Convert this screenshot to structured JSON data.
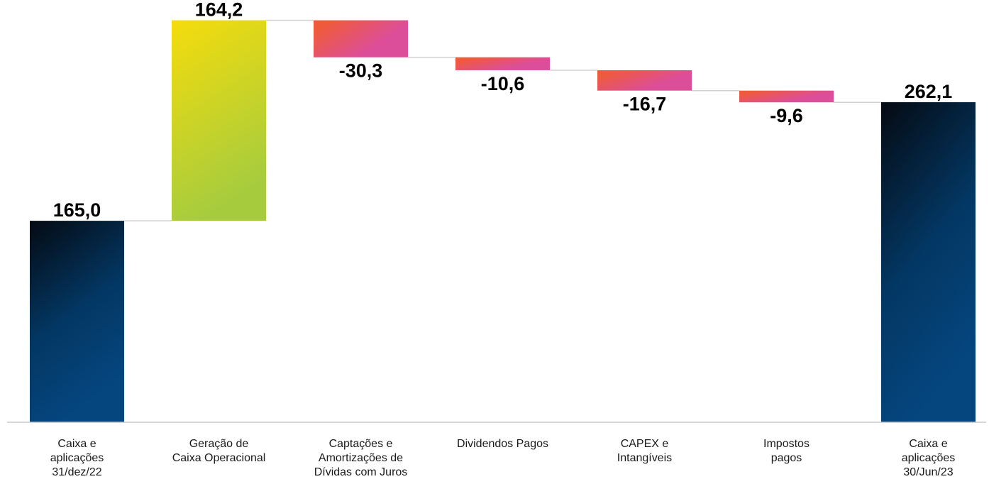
{
  "chart_data": {
    "type": "waterfall",
    "title": "",
    "xlabel": "",
    "ylabel": "",
    "ylim": [
      0,
      340
    ],
    "grid": false,
    "legend": "none",
    "categories": [
      [
        "Caixa e",
        "aplicações",
        "31/dez/22"
      ],
      [
        "Geração de",
        "Caixa Operacional"
      ],
      [
        "Captações e",
        "Amortizações de",
        "Dívidas com Juros"
      ],
      [
        "Dividendos Pagos"
      ],
      [
        "CAPEX e",
        "Intangíveis"
      ],
      [
        "Impostos",
        "pagos"
      ],
      [
        "Caixa e",
        "aplicações",
        "30/Jun/23"
      ]
    ],
    "values": [
      165.0,
      164.2,
      -30.3,
      -10.6,
      -16.7,
      -9.6,
      262.1
    ],
    "kinds": [
      "total",
      "delta",
      "delta",
      "delta",
      "delta",
      "delta",
      "total"
    ],
    "labels": [
      "165,0",
      "164,2",
      "-30,3",
      "-10,6",
      "-16,7",
      "-9,6",
      "262,1"
    ],
    "colors": {
      "total_top": "#050a12",
      "total_bottom": "#05467f",
      "positive_top": "#f5dc0c",
      "positive_bottom": "#a6cc3e",
      "negative_orange": "#ef5a3c",
      "negative_pink": "#dc4e9a",
      "connector": "#d0d0d0",
      "axis": "#c8c8c8"
    }
  }
}
